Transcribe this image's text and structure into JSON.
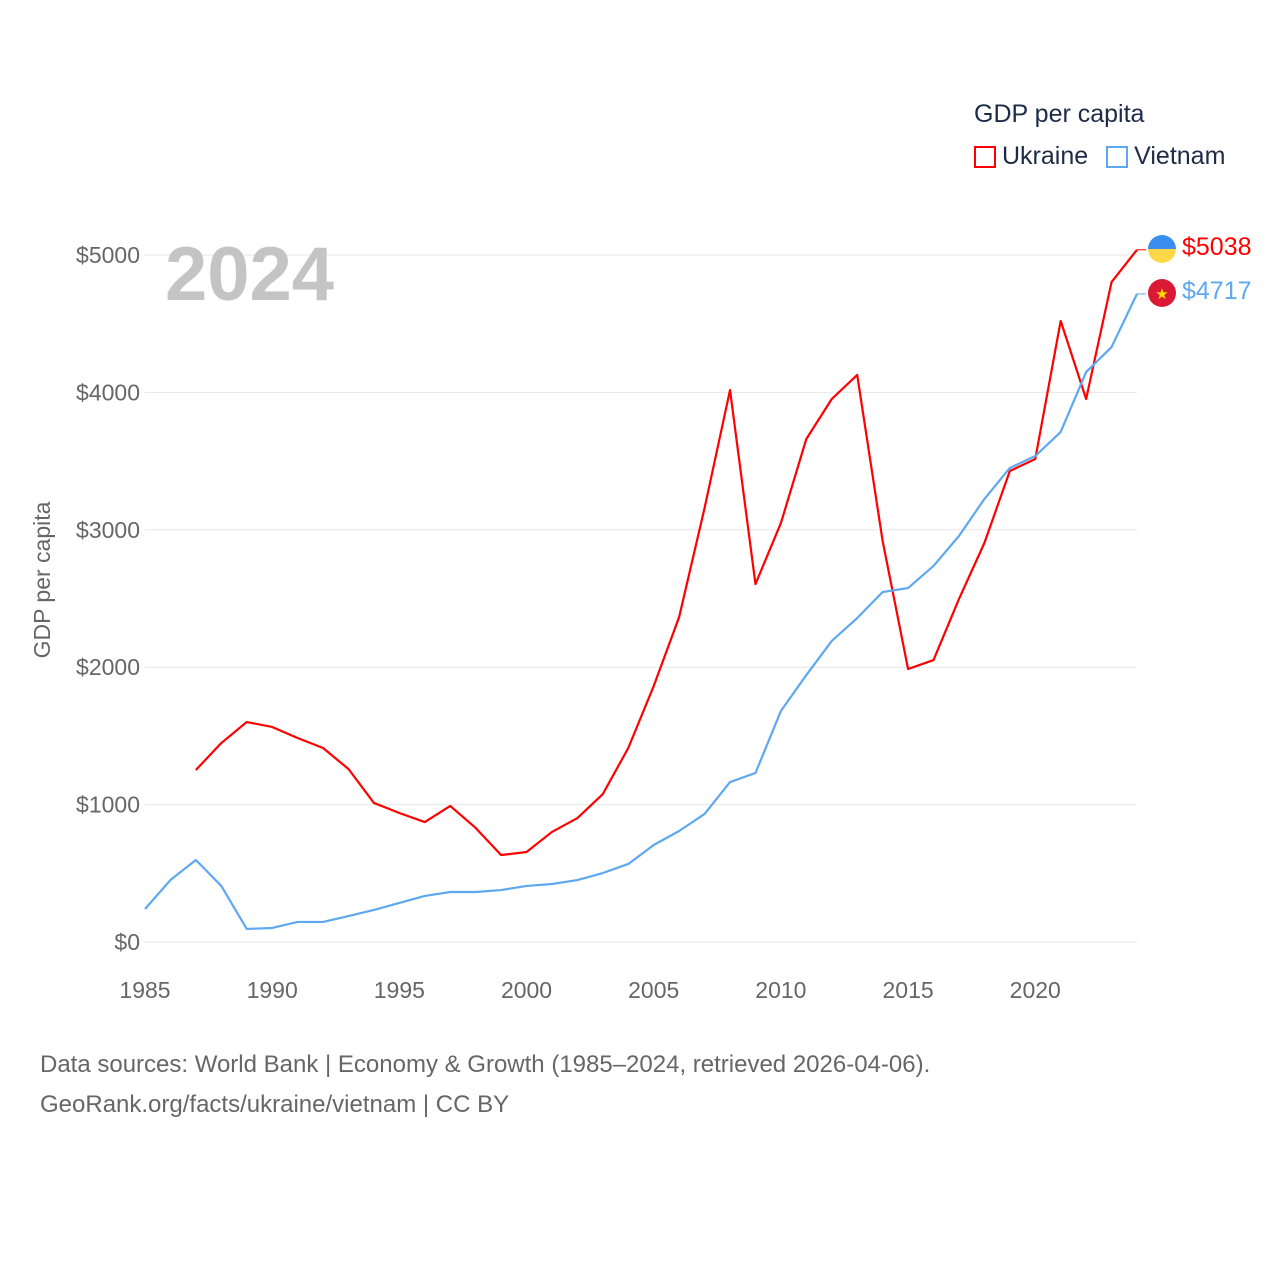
{
  "chart_data": {
    "type": "line",
    "title": "GDP per capita",
    "year_label": "2024",
    "xlabel": "",
    "ylabel": "GDP per capita",
    "xlim": [
      1985,
      2024
    ],
    "ylim": [
      0,
      5000
    ],
    "x_ticks": [
      "1985",
      "1990",
      "1995",
      "2000",
      "2005",
      "2010",
      "2015",
      "2020"
    ],
    "y_ticks": [
      "$0",
      "$1000",
      "$2000",
      "$3000",
      "$4000",
      "$5000"
    ],
    "legend_position": "top-right",
    "grid": true,
    "series": [
      {
        "name": "Ukraine",
        "color": "#ff0000",
        "end_label": "$5038",
        "start_year": 1987,
        "values": [
          1252,
          1448,
          1601,
          1565,
          1485,
          1412,
          1259,
          1012,
          939,
          873,
          990,
          830,
          633,
          655,
          801,
          902,
          1077,
          1412,
          1863,
          2365,
          3159,
          4017,
          2605,
          3049,
          3661,
          3952,
          4127,
          2918,
          1987,
          2052,
          2496,
          2904,
          3428,
          3515,
          4520,
          3952,
          4803,
          5038
        ]
      },
      {
        "name": "Vietnam",
        "color": "#5ea8f0",
        "end_label": "$4717",
        "start_year": 1985,
        "values": [
          240,
          451,
          597,
          408,
          95,
          102,
          146,
          146,
          189,
          233,
          284,
          335,
          364,
          364,
          378,
          408,
          422,
          451,
          502,
          568,
          706,
          808,
          932,
          1164,
          1230,
          1681,
          1943,
          2191,
          2358,
          2547,
          2576,
          2737,
          2955,
          3224,
          3450,
          3537,
          3712,
          4148,
          4330,
          4717
        ]
      }
    ]
  },
  "source": {
    "line1": "Data sources: World Bank | Economy & Growth (1985–2024, retrieved 2026-04-06).",
    "line2": "GeoRank.org/facts/ukraine/vietnam | CC BY"
  }
}
